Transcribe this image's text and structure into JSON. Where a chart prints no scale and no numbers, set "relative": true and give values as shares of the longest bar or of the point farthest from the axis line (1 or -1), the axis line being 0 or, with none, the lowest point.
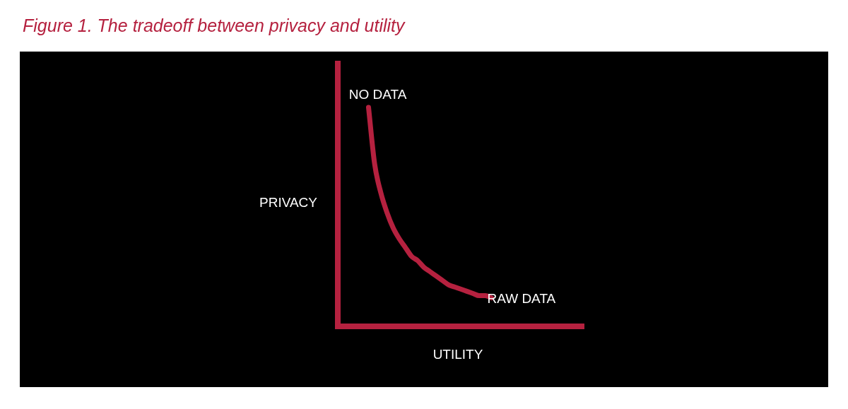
{
  "chart_data": {
    "type": "line",
    "title": "Figure 1. The tradeoff between privacy and utility",
    "xlabel": "UTILITY",
    "ylabel": "PRIVACY",
    "relative": true,
    "legend": false,
    "marker": "none",
    "categories": [
      null,
      null,
      null,
      null,
      null,
      null,
      null,
      null,
      null,
      null,
      null,
      null,
      null,
      null,
      null,
      null,
      null,
      null,
      null,
      null,
      null,
      null,
      null,
      null,
      null,
      null,
      null,
      null,
      null,
      null,
      null,
      null,
      null,
      null,
      null,
      null,
      null,
      null,
      null,
      null,
      null
    ],
    "series": [
      {
        "color": "#b5213f",
        "values": [
          null,
          null,
          null,
          null,
          null,
          1.0,
          0.74,
          0.61,
          0.52,
          0.45,
          0.4,
          0.36,
          0.32,
          0.3,
          0.27,
          0.25,
          0.23,
          0.21,
          0.19,
          0.18,
          0.17,
          0.16,
          0.15,
          0.14,
          0.14,
          0.13,
          null,
          null,
          null,
          null,
          null,
          null,
          null,
          null,
          null,
          null,
          null,
          null,
          null,
          null,
          null
        ]
      }
    ],
    "annotations": [
      "NO DATA",
      "RAW DATA"
    ]
  }
}
